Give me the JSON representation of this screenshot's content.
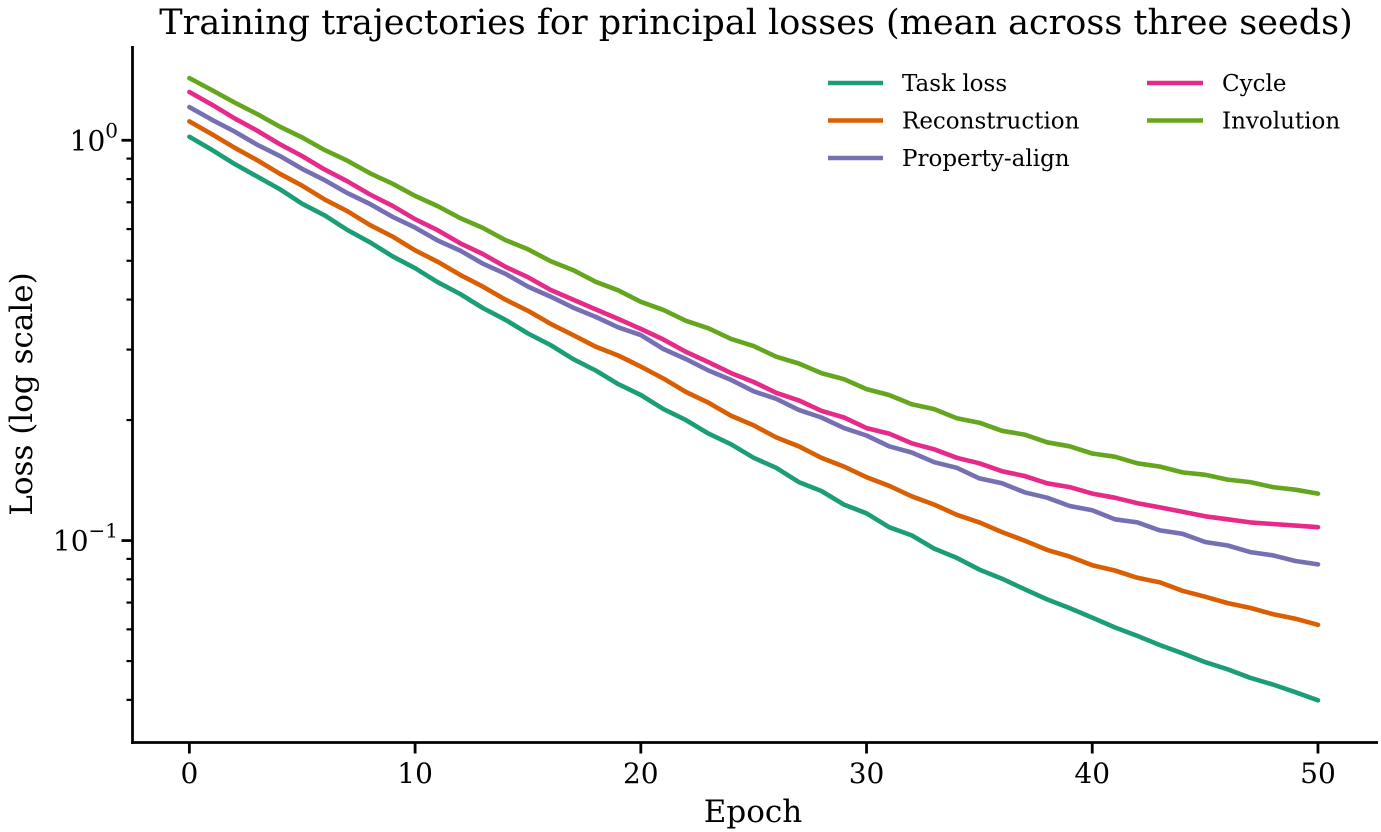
{
  "figure": {
    "background": "#ffffff",
    "text_color": "#000000"
  },
  "chart_data": {
    "type": "line",
    "title": "Training trajectories for principal losses (mean across three seeds)",
    "xlabel": "Epoch",
    "ylabel": "Loss (log scale)",
    "y_scale": "log",
    "grid": false,
    "legend_position": "upper right inside plot, two columns, no frame",
    "xlim": [
      -2.52,
      52.66
    ],
    "ylim": [
      0.0313,
      1.72
    ],
    "x_ticks": [
      0,
      10,
      20,
      30,
      40,
      50
    ],
    "y_ticks": [
      {
        "base": "10",
        "exp": "0",
        "value": 1.0
      },
      {
        "base": "10",
        "exp": "−1",
        "value": 0.1
      }
    ],
    "y_minor_ticks": [
      0.9,
      0.8,
      0.7,
      0.6,
      0.5,
      0.4,
      0.3,
      0.2,
      0.09,
      0.08,
      0.07,
      0.06,
      0.05,
      0.04
    ],
    "x": [
      0,
      1,
      2,
      3,
      4,
      5,
      6,
      7,
      8,
      9,
      10,
      11,
      12,
      13,
      14,
      15,
      16,
      17,
      18,
      19,
      20,
      21,
      22,
      23,
      24,
      25,
      26,
      27,
      28,
      29,
      30,
      31,
      32,
      33,
      34,
      35,
      36,
      37,
      38,
      39,
      40,
      41,
      42,
      43,
      44,
      45,
      46,
      47,
      48,
      49,
      50
    ],
    "series": [
      {
        "name": "Task loss",
        "color": "#1b9e77",
        "values": [
          1.02,
          0.946,
          0.873,
          0.812,
          0.755,
          0.694,
          0.649,
          0.597,
          0.556,
          0.513,
          0.479,
          0.442,
          0.413,
          0.381,
          0.356,
          0.329,
          0.308,
          0.284,
          0.266,
          0.246,
          0.231,
          0.213,
          0.2,
          0.185,
          0.174,
          0.161,
          0.152,
          0.14,
          0.133,
          0.123,
          0.117,
          0.108,
          0.103,
          0.0955,
          0.0905,
          0.0846,
          0.0803,
          0.0756,
          0.0713,
          0.0678,
          0.0642,
          0.0607,
          0.0578,
          0.0548,
          0.0523,
          0.0497,
          0.0477,
          0.0454,
          0.0437,
          0.0418,
          0.0399
        ]
      },
      {
        "name": "Reconstruction",
        "color": "#d95f02",
        "values": [
          1.115,
          1.035,
          0.958,
          0.892,
          0.825,
          0.77,
          0.711,
          0.665,
          0.614,
          0.575,
          0.531,
          0.497,
          0.461,
          0.431,
          0.4,
          0.375,
          0.348,
          0.326,
          0.305,
          0.29,
          0.272,
          0.254,
          0.235,
          0.221,
          0.205,
          0.194,
          0.181,
          0.172,
          0.161,
          0.153,
          0.144,
          0.137,
          0.129,
          0.123,
          0.116,
          0.111,
          0.105,
          0.1,
          0.0948,
          0.0912,
          0.0868,
          0.0842,
          0.0807,
          0.0786,
          0.0749,
          0.0724,
          0.0698,
          0.0679,
          0.0655,
          0.0638,
          0.0616
        ]
      },
      {
        "name": "Property-align",
        "color": "#7570b3",
        "values": [
          1.21,
          1.125,
          1.052,
          0.975,
          0.914,
          0.848,
          0.795,
          0.738,
          0.693,
          0.644,
          0.605,
          0.562,
          0.53,
          0.492,
          0.464,
          0.431,
          0.407,
          0.382,
          0.362,
          0.341,
          0.326,
          0.301,
          0.284,
          0.266,
          0.252,
          0.236,
          0.226,
          0.212,
          0.203,
          0.191,
          0.183,
          0.172,
          0.166,
          0.157,
          0.152,
          0.143,
          0.139,
          0.132,
          0.128,
          0.122,
          0.119,
          0.113,
          0.111,
          0.106,
          0.104,
          0.0992,
          0.0972,
          0.0936,
          0.0919,
          0.0889,
          0.0872
        ]
      },
      {
        "name": "Cycle",
        "color": "#e7298a",
        "values": [
          1.32,
          1.227,
          1.135,
          1.057,
          0.978,
          0.913,
          0.845,
          0.79,
          0.732,
          0.686,
          0.635,
          0.596,
          0.553,
          0.52,
          0.483,
          0.455,
          0.423,
          0.4,
          0.378,
          0.358,
          0.338,
          0.318,
          0.296,
          0.279,
          0.262,
          0.249,
          0.234,
          0.224,
          0.211,
          0.203,
          0.191,
          0.185,
          0.175,
          0.169,
          0.161,
          0.156,
          0.149,
          0.145,
          0.139,
          0.136,
          0.131,
          0.128,
          0.124,
          0.121,
          0.118,
          0.115,
          0.113,
          0.111,
          0.11,
          0.109,
          0.108
        ]
      },
      {
        "name": "Involution",
        "color": "#66a61e",
        "values": [
          1.43,
          1.335,
          1.243,
          1.163,
          1.082,
          1.016,
          0.945,
          0.889,
          0.827,
          0.779,
          0.726,
          0.685,
          0.639,
          0.604,
          0.563,
          0.534,
          0.499,
          0.474,
          0.443,
          0.422,
          0.395,
          0.377,
          0.354,
          0.339,
          0.319,
          0.306,
          0.288,
          0.277,
          0.262,
          0.253,
          0.239,
          0.231,
          0.219,
          0.213,
          0.202,
          0.197,
          0.188,
          0.184,
          0.176,
          0.172,
          0.165,
          0.162,
          0.156,
          0.153,
          0.148,
          0.146,
          0.142,
          0.14,
          0.136,
          0.134,
          0.131
        ]
      }
    ]
  }
}
